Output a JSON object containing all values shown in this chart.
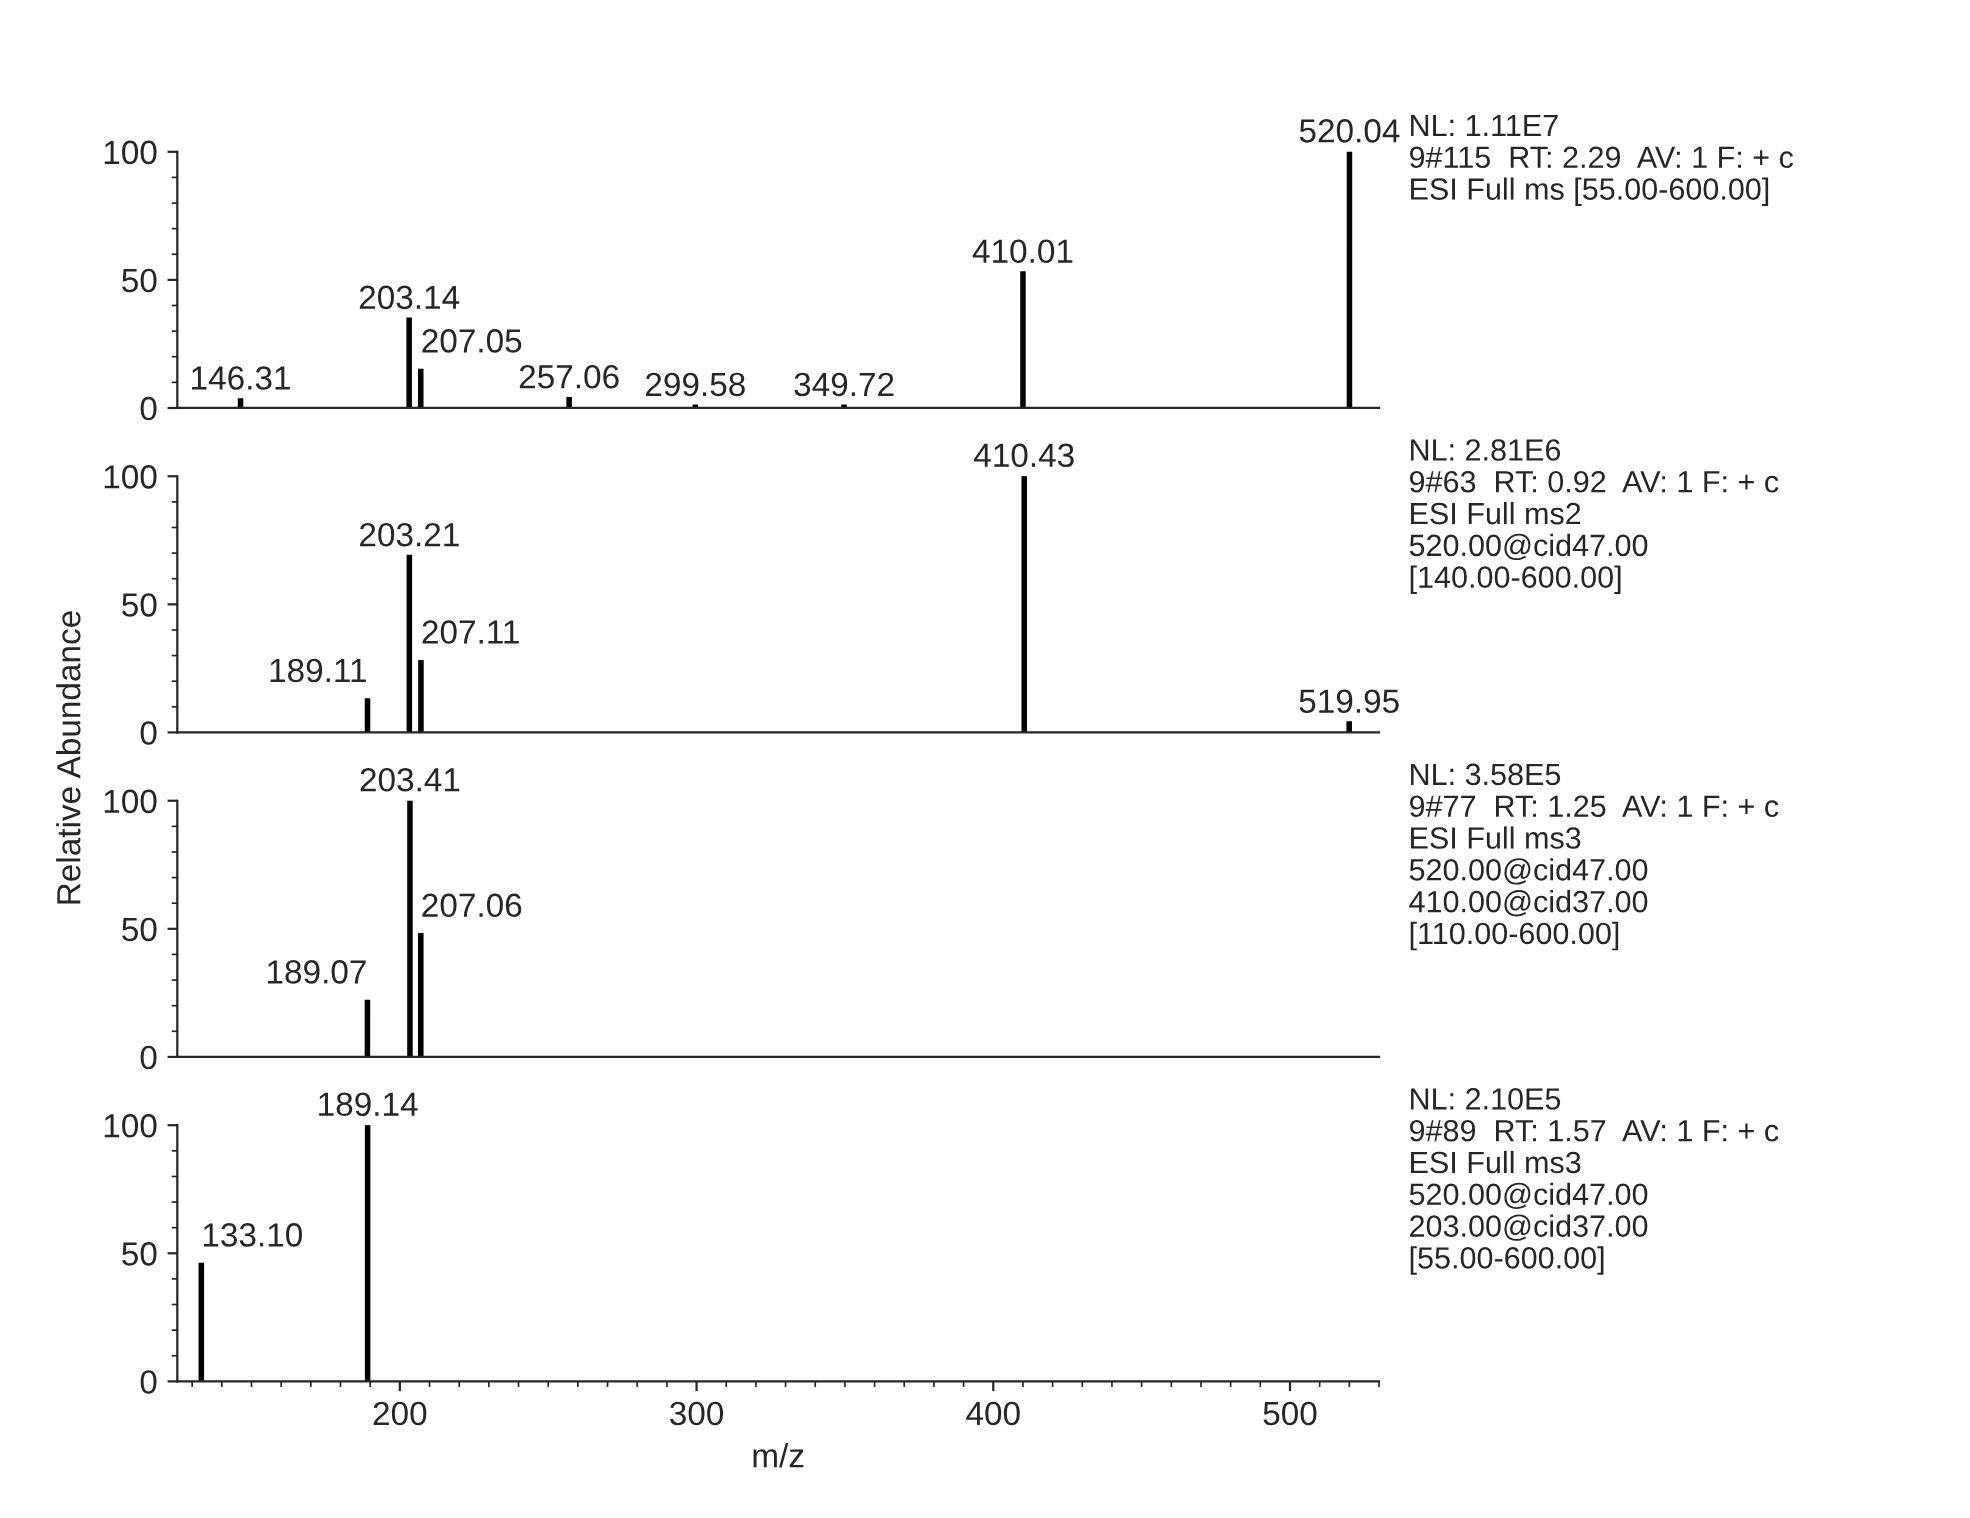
{
  "chart_data": [
    {
      "type": "bar",
      "x": [
        146.31,
        203.14,
        207.05,
        257.06,
        299.58,
        349.72,
        410.01,
        520.04
      ],
      "values": [
        3.5,
        35,
        15,
        4,
        1,
        1,
        53,
        100
      ],
      "color": "#000000",
      "xlim": [
        125,
        530
      ],
      "ylim": [
        0,
        100
      ],
      "yticks": [
        0,
        50,
        100
      ],
      "tick_labels": "y",
      "annotations": [
        {
          "text": "146.31",
          "x": 146.31,
          "y": 3.5
        },
        {
          "text": "203.14",
          "x": 203.14,
          "y": 35
        },
        {
          "text": "207.05",
          "x": 207.05,
          "y": 15
        },
        {
          "text": "257.06",
          "x": 257.06,
          "y": 4
        },
        {
          "text": "299.58",
          "x": 299.58,
          "y": 1
        },
        {
          "text": "349.72",
          "x": 349.72,
          "y": 1
        },
        {
          "text": "410.01",
          "x": 410.01,
          "y": 53
        },
        {
          "text": "520.04",
          "x": 520.04,
          "y": 100
        },
        "NL: 1.11E7\n9#115  RT: 2.29  AV: 1 F: + c\nESI Full ms [55.00-600.00]"
      ]
    },
    {
      "type": "bar",
      "x": [
        189.11,
        203.21,
        207.11,
        410.43,
        519.95
      ],
      "values": [
        13,
        69,
        28,
        100,
        4
      ],
      "color": "#000000",
      "xlim": [
        125,
        530
      ],
      "ylim": [
        0,
        100
      ],
      "yticks": [
        0,
        50,
        100
      ],
      "tick_labels": "y",
      "ylabel": "Relative Abundance",
      "annotations": [
        {
          "text": "189.11",
          "x": 189.11,
          "y": 13
        },
        {
          "text": "203.21",
          "x": 203.21,
          "y": 69
        },
        {
          "text": "207.11",
          "x": 207.11,
          "y": 28
        },
        {
          "text": "410.43",
          "x": 410.43,
          "y": 100
        },
        {
          "text": "519.95",
          "x": 519.95,
          "y": 4
        },
        "NL: 2.81E6\n9#63  RT: 0.92  AV: 1 F: + c\nESI Full ms2\n520.00@cid47.00\n[140.00-600.00]"
      ]
    },
    {
      "type": "bar",
      "x": [
        189.07,
        203.41,
        207.06
      ],
      "values": [
        22,
        100,
        48
      ],
      "color": "#000000",
      "xlim": [
        125,
        530
      ],
      "ylim": [
        0,
        100
      ],
      "yticks": [
        0,
        50,
        100
      ],
      "tick_labels": "y",
      "annotations": [
        {
          "text": "189.07",
          "x": 189.07,
          "y": 22
        },
        {
          "text": "203.41",
          "x": 203.41,
          "y": 100
        },
        {
          "text": "207.06",
          "x": 207.06,
          "y": 48
        },
        "NL: 3.58E5\n9#77  RT: 1.25  AV: 1 F: + c\nESI Full ms3\n520.00@cid47.00\n410.00@cid37.00\n[110.00-600.00]"
      ]
    },
    {
      "type": "bar",
      "x": [
        133.1,
        189.14
      ],
      "values": [
        46,
        100
      ],
      "color": "#000000",
      "xlim": [
        125,
        530
      ],
      "ylim": [
        0,
        100
      ],
      "yticks": [
        0,
        50,
        100
      ],
      "xticks": [
        200,
        300,
        400,
        500
      ],
      "xlabel": "m/z",
      "annotations": [
        {
          "text": "133.10",
          "x": 133.1,
          "y": 46
        },
        {
          "text": "189.14",
          "x": 189.14,
          "y": 100
        },
        "NL: 2.10E5\n9#89  RT: 1.57  AV: 1 F: + c\nESI Full ms3\n520.00@cid47.00\n203.00@cid37.00\n[55.00-600.00]"
      ]
    }
  ]
}
